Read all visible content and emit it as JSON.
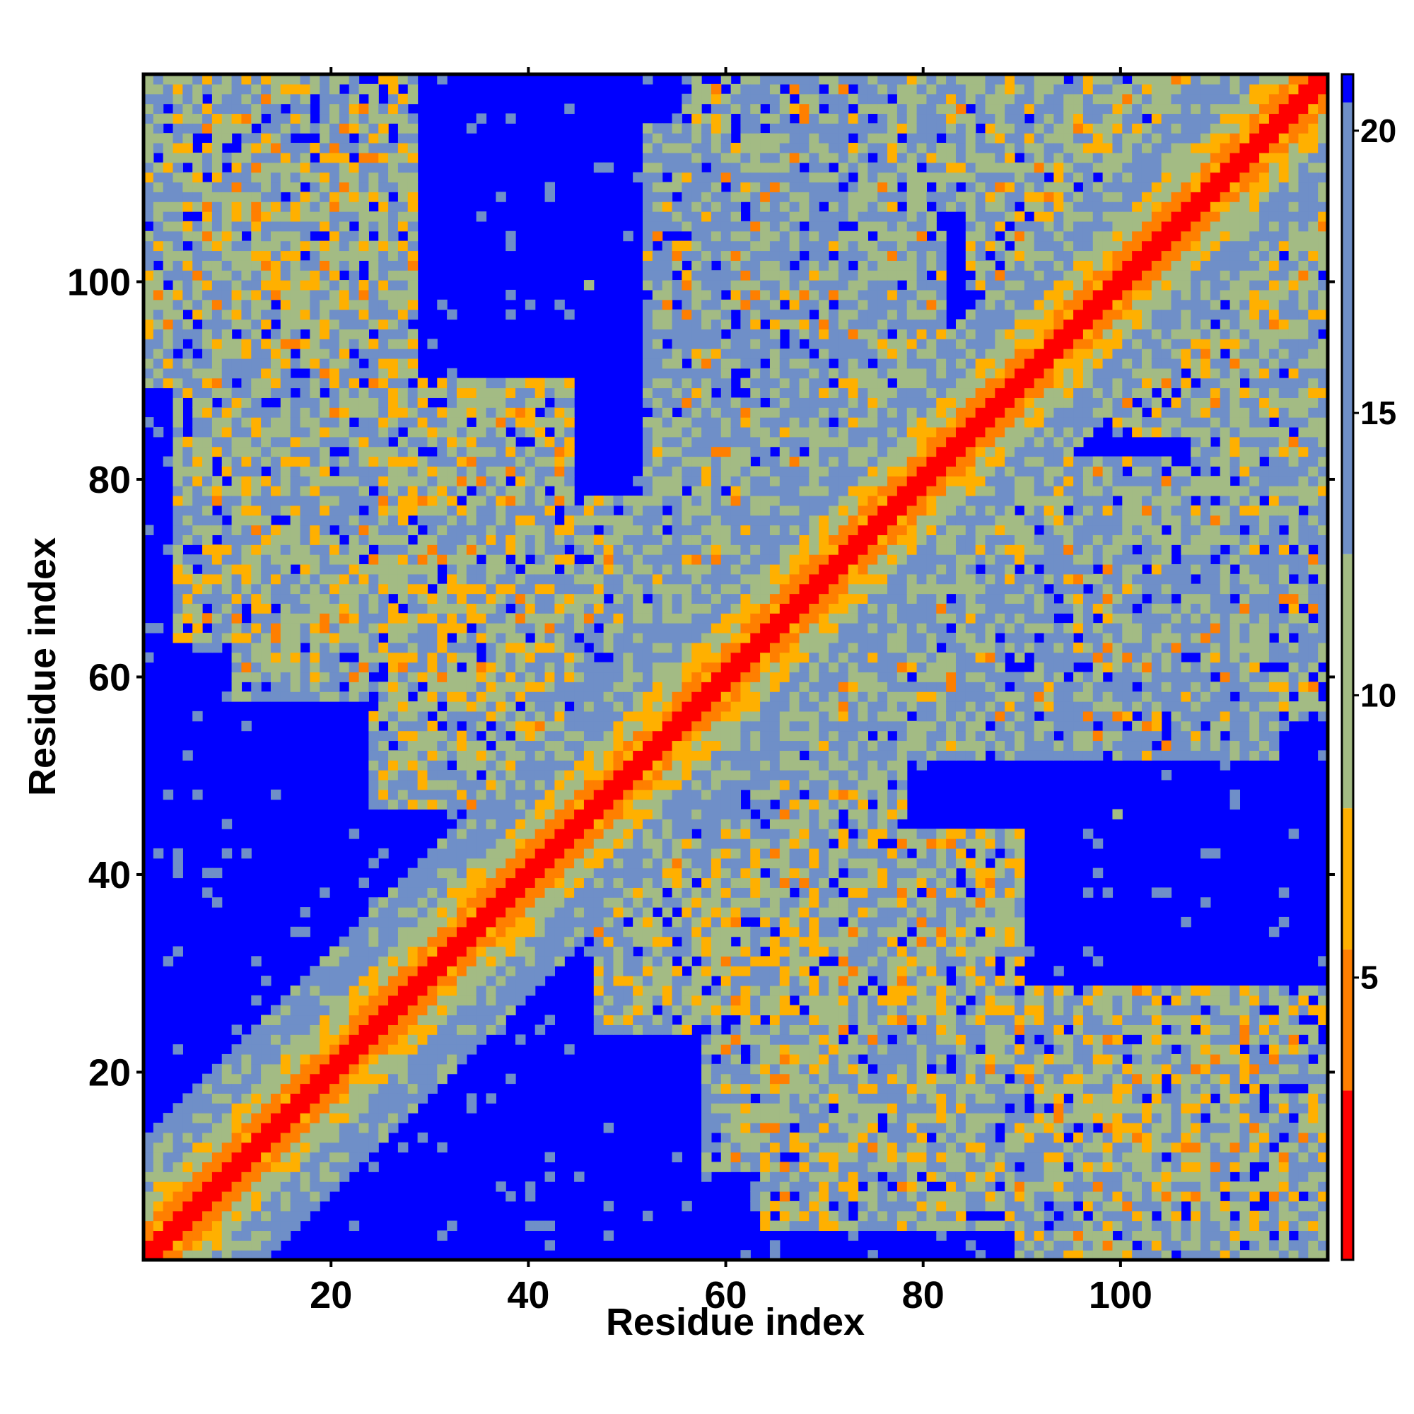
{
  "chart_data": {
    "type": "heatmap",
    "title": "",
    "xlabel": "Residue index",
    "ylabel": "Residue index",
    "xlim": [
      1,
      121
    ],
    "ylim": [
      1,
      121
    ],
    "x_ticks": [
      20,
      40,
      60,
      80,
      100
    ],
    "y_ticks": [
      20,
      40,
      60,
      80,
      100
    ],
    "colorbar": {
      "range": [
        0,
        21
      ],
      "ticks": [
        5,
        10,
        15,
        20
      ],
      "colors": {
        "close_red": "#ff0000",
        "orange": "#ff7f00",
        "light_orange": "#ffb000",
        "sage": "#a3bb84",
        "steel_blue": "#6f8fc8",
        "far_blue": "#0000ff"
      },
      "boundaries": [
        3.0,
        5.5,
        8.0,
        12.5,
        20.5
      ]
    },
    "matrix": {
      "n": 121,
      "symmetric": true,
      "description_free_values": "distance matrix; near-diagonal cells small (red), contact regions medium (sage/steel), far cells large (blue)",
      "diagonal_band_value": 1.5,
      "contact_regions": [
        {
          "i": [
            1,
            28
          ],
          "j": [
            90,
            121
          ],
          "value": 12
        },
        {
          "i": [
            4,
            26
          ],
          "j": [
            64,
            114
          ],
          "value": 12
        },
        {
          "i": [
            10,
            25
          ],
          "j": [
            58,
            72
          ],
          "value": 13
        },
        {
          "i": [
            24,
            44
          ],
          "j": [
            47,
            90
          ],
          "value": 12
        },
        {
          "i": [
            38,
            60
          ],
          "j": [
            56,
            78
          ],
          "value": 13
        },
        {
          "i": [
            52,
            72
          ],
          "j": [
            60,
            116
          ],
          "value": 14
        },
        {
          "i": [
            60,
            82
          ],
          "j": [
            80,
            121
          ],
          "value": 13
        },
        {
          "i": [
            85,
            112
          ],
          "j": [
            100,
            121
          ],
          "value": 12
        },
        {
          "i": [
            66,
            84
          ],
          "j": [
            108,
            121
          ],
          "value": 12
        },
        {
          "i": [
            98,
            121
          ],
          "j": [
            56,
            80
          ],
          "value": 12
        }
      ]
    }
  }
}
